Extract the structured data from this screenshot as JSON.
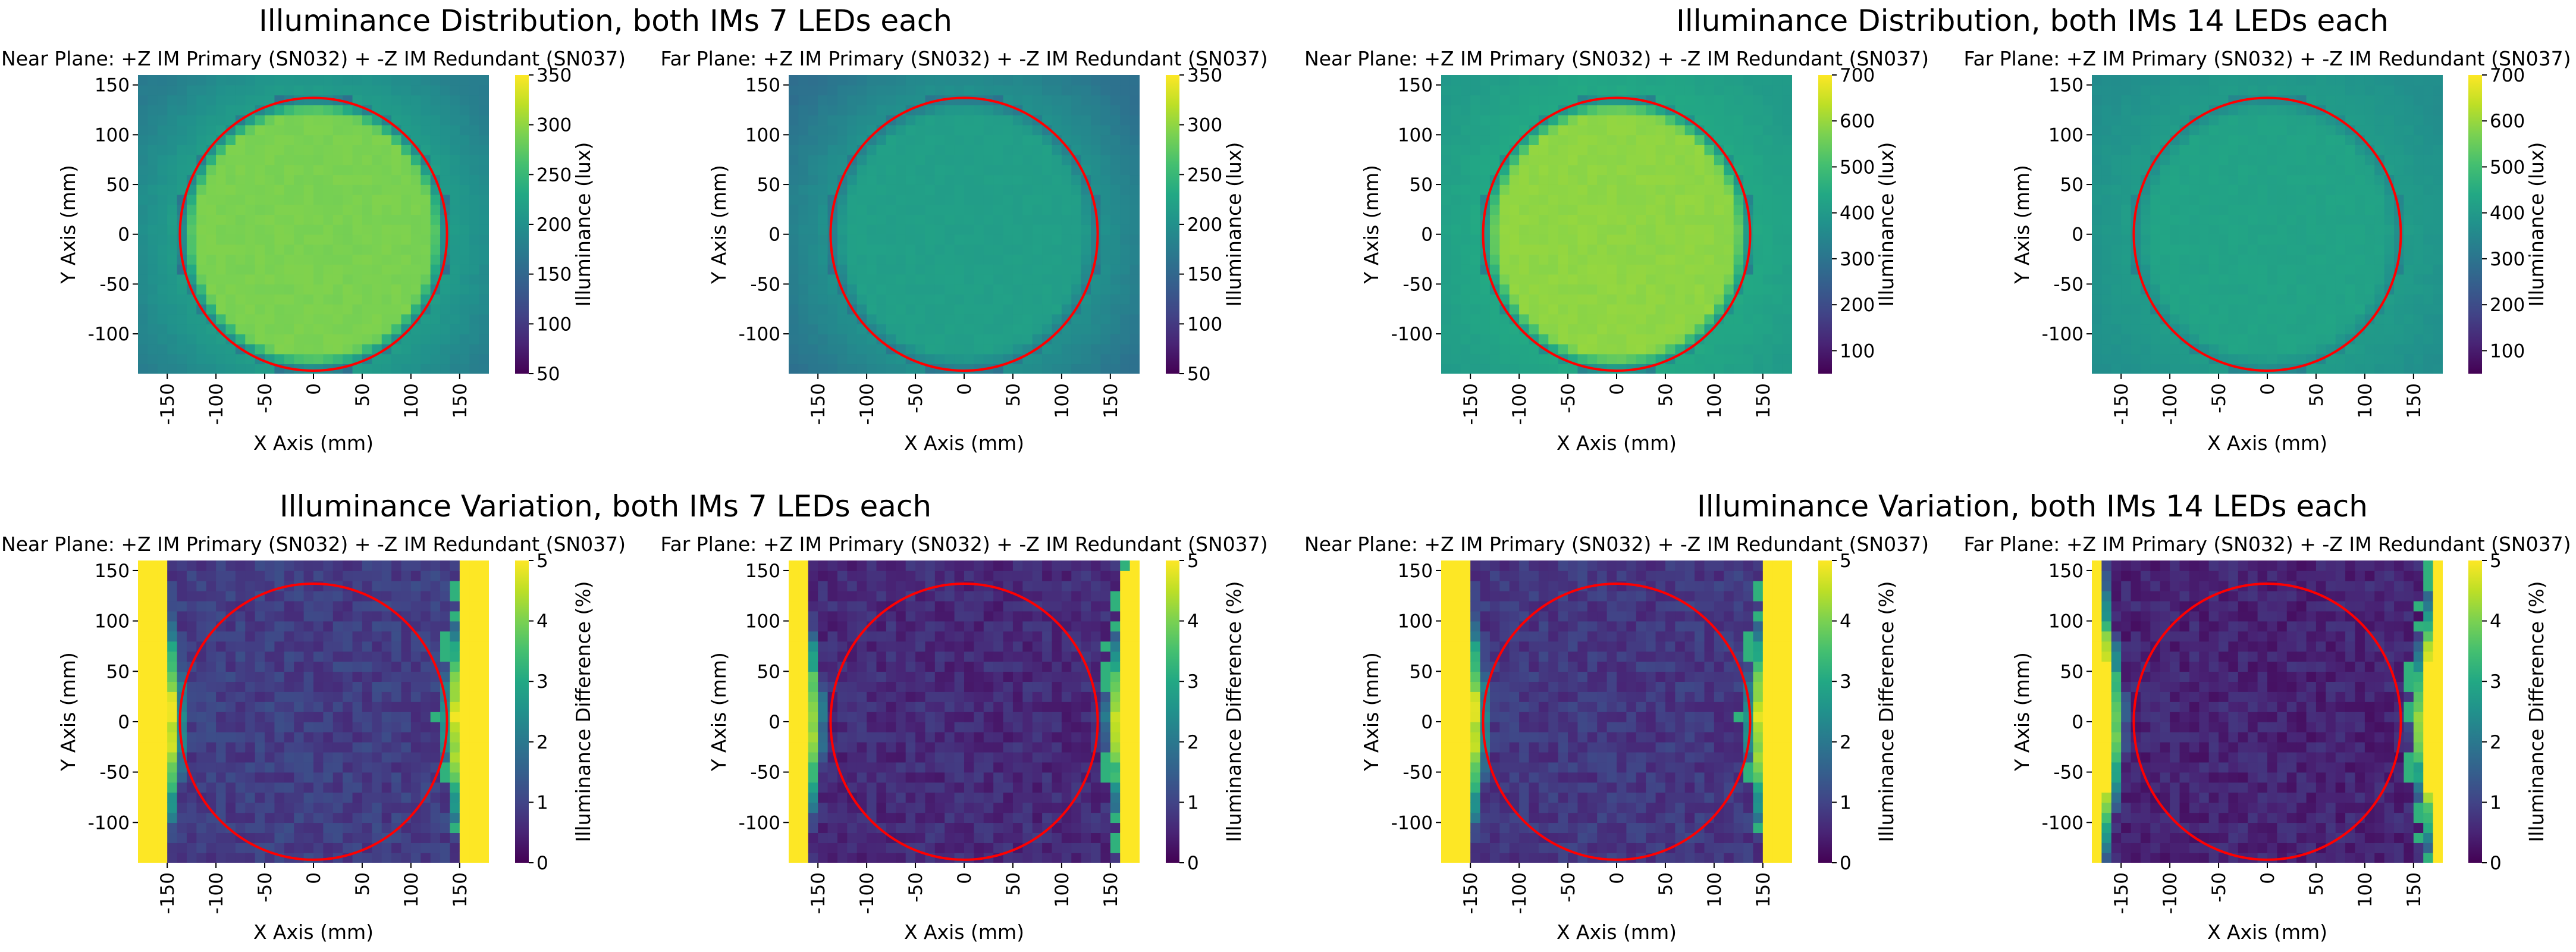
{
  "colors": {
    "circle": "#ff0000",
    "viridis": [
      "#440154",
      "#482475",
      "#414487",
      "#355f8d",
      "#2a788e",
      "#21918c",
      "#22a884",
      "#44bf70",
      "#7ad151",
      "#bddf26",
      "#fde725"
    ]
  },
  "suptitles": [
    "Illuminance Distribution, both IMs 7 LEDs each",
    "Illuminance Distribution, both IMs 14 LEDs each",
    "Illuminance Variation, both IMs 7 LEDs each",
    "Illuminance Variation, both IMs 14 LEDs each"
  ],
  "chart_data": [
    {
      "type": "heatmap",
      "id": "near-7-dist",
      "title": "Near Plane: +Z IM Primary (SN032) + -Z IM Redundant (SN037)",
      "xlabel": "X Axis (mm)",
      "ylabel": "Y Axis (mm)",
      "xticks": [
        "-150",
        "-100",
        "-50",
        "0",
        "50",
        "100",
        "150"
      ],
      "yticks": [
        "150",
        "100",
        "50",
        "0",
        "-50",
        "-100"
      ],
      "xlim": [
        -180,
        180
      ],
      "ylim": [
        -140,
        160
      ],
      "colorbar": {
        "label": "Illuminance (lux)",
        "ticks": [
          "350",
          "300",
          "250",
          "200",
          "150",
          "100",
          "50"
        ],
        "range": [
          50,
          350
        ]
      },
      "field": {
        "kind": "distribution",
        "inside": 290,
        "edge": 160,
        "outside": 215
      },
      "circle": {
        "cx": 0,
        "cy": 0,
        "r": 137
      }
    },
    {
      "type": "heatmap",
      "id": "far-7-dist",
      "title": "Far Plane: +Z IM Primary (SN032) + -Z IM Redundant (SN037)",
      "xlabel": "X Axis (mm)",
      "ylabel": "Y Axis (mm)",
      "xticks": [
        "-150",
        "-100",
        "-50",
        "0",
        "50",
        "100",
        "150"
      ],
      "yticks": [
        "150",
        "100",
        "50",
        "0",
        "-50",
        "-100"
      ],
      "xlim": [
        -180,
        180
      ],
      "ylim": [
        -140,
        160
      ],
      "colorbar": {
        "label": "Illuminance (lux)",
        "ticks": [
          "350",
          "300",
          "250",
          "200",
          "150",
          "100",
          "50"
        ],
        "range": [
          50,
          350
        ]
      },
      "field": {
        "kind": "distribution",
        "inside": 218,
        "edge": 165,
        "outside": 200
      },
      "circle": {
        "cx": 0,
        "cy": 0,
        "r": 137
      }
    },
    {
      "type": "heatmap",
      "id": "near-14-dist",
      "title": "Near Plane: +Z IM Primary (SN032) + -Z IM Redundant (SN037)",
      "xlabel": "X Axis (mm)",
      "ylabel": "Y Axis (mm)",
      "xticks": [
        "-150",
        "-100",
        "-50",
        "0",
        "50",
        "100",
        "150"
      ],
      "yticks": [
        "150",
        "100",
        "50",
        "0",
        "-50",
        "-100"
      ],
      "xlim": [
        -180,
        180
      ],
      "ylim": [
        -140,
        160
      ],
      "colorbar": {
        "label": "Illuminance (lux)",
        "ticks": [
          "700",
          "600",
          "500",
          "400",
          "300",
          "200",
          "100"
        ],
        "range": [
          50,
          700
        ]
      },
      "field": {
        "kind": "distribution",
        "inside": 590,
        "edge": 330,
        "outside": 440
      },
      "circle": {
        "cx": 0,
        "cy": 0,
        "r": 137
      }
    },
    {
      "type": "heatmap",
      "id": "far-14-dist",
      "title": "Far Plane: +Z IM Primary (SN032) + -Z IM Redundant (SN037)",
      "xlabel": "X Axis (mm)",
      "ylabel": "Y Axis (mm)",
      "xticks": [
        "-150",
        "-100",
        "-50",
        "0",
        "50",
        "100",
        "150"
      ],
      "yticks": [
        "150",
        "100",
        "50",
        "0",
        "-50",
        "-100"
      ],
      "xlim": [
        -180,
        180
      ],
      "ylim": [
        -140,
        160
      ],
      "colorbar": {
        "label": "Illuminance (lux)",
        "ticks": [
          "700",
          "600",
          "500",
          "400",
          "300",
          "200",
          "100"
        ],
        "range": [
          50,
          700
        ]
      },
      "field": {
        "kind": "distribution",
        "inside": 425,
        "edge": 340,
        "outside": 405
      },
      "circle": {
        "cx": 0,
        "cy": 0,
        "r": 137
      }
    },
    {
      "type": "heatmap",
      "id": "near-7-var",
      "title": "Near Plane: +Z IM Primary (SN032) + -Z IM Redundant (SN037)",
      "xlabel": "X Axis (mm)",
      "ylabel": "Y Axis (mm)",
      "xticks": [
        "-150",
        "-100",
        "-50",
        "0",
        "50",
        "100",
        "150"
      ],
      "yticks": [
        "150",
        "100",
        "50",
        "0",
        "-50",
        "-100"
      ],
      "xlim": [
        -180,
        180
      ],
      "ylim": [
        -140,
        160
      ],
      "colorbar": {
        "label": "Illuminance Difference (%)",
        "ticks": [
          "5",
          "4",
          "3",
          "2",
          "1",
          "0"
        ],
        "range": [
          0,
          5
        ]
      },
      "field": {
        "kind": "variation",
        "inside": 0.9,
        "edgeDist": 128,
        "bandWidth": 18,
        "outerEdge": 150
      },
      "circle": {
        "cx": 0,
        "cy": 0,
        "r": 137
      }
    },
    {
      "type": "heatmap",
      "id": "far-7-var",
      "title": "Far Plane: +Z IM Primary (SN032) + -Z IM Redundant (SN037)",
      "xlabel": "X Axis (mm)",
      "ylabel": "Y Axis (mm)",
      "xticks": [
        "-150",
        "-100",
        "-50",
        "0",
        "50",
        "100",
        "150"
      ],
      "yticks": [
        "150",
        "100",
        "50",
        "0",
        "-50",
        "-100"
      ],
      "xlim": [
        -180,
        180
      ],
      "ylim": [
        -140,
        160
      ],
      "colorbar": {
        "label": "Illuminance Difference (%)",
        "ticks": [
          "5",
          "4",
          "3",
          "2",
          "1",
          "0"
        ],
        "range": [
          0,
          5
        ]
      },
      "field": {
        "kind": "variation",
        "inside": 0.6,
        "edgeDist": 140,
        "bandWidth": 16,
        "outerEdge": 162
      },
      "circle": {
        "cx": 0,
        "cy": 0,
        "r": 137
      }
    },
    {
      "type": "heatmap",
      "id": "near-14-var",
      "title": "Near Plane: +Z IM Primary (SN032) + -Z IM Redundant (SN037)",
      "xlabel": "X Axis (mm)",
      "ylabel": "Y Axis (mm)",
      "xticks": [
        "-150",
        "-100",
        "-50",
        "0",
        "50",
        "100",
        "150"
      ],
      "yticks": [
        "150",
        "100",
        "50",
        "0",
        "-50",
        "-100"
      ],
      "xlim": [
        -180,
        180
      ],
      "ylim": [
        -140,
        160
      ],
      "colorbar": {
        "label": "Illuminance Difference (%)",
        "ticks": [
          "5",
          "4",
          "3",
          "2",
          "1",
          "0"
        ],
        "range": [
          0,
          5
        ]
      },
      "field": {
        "kind": "variation",
        "inside": 0.8,
        "edgeDist": 128,
        "bandWidth": 18,
        "outerEdge": 150
      },
      "circle": {
        "cx": 0,
        "cy": 0,
        "r": 137
      }
    },
    {
      "type": "heatmap",
      "id": "far-14-var",
      "title": "Far Plane: +Z IM Primary (SN032) + -Z IM Redundant (SN037)",
      "xlabel": "X Axis (mm)",
      "ylabel": "Y Axis (mm)",
      "xticks": [
        "-150",
        "-100",
        "-50",
        "0",
        "50",
        "100",
        "150"
      ],
      "yticks": [
        "150",
        "100",
        "50",
        "0",
        "-50",
        "-100"
      ],
      "xlim": [
        -180,
        180
      ],
      "ylim": [
        -140,
        160
      ],
      "colorbar": {
        "label": "Illuminance Difference (%)",
        "ticks": [
          "5",
          "4",
          "3",
          "2",
          "1",
          "0"
        ],
        "range": [
          0,
          5
        ]
      },
      "field": {
        "kind": "variation",
        "inside": 0.5,
        "edgeDist": 142,
        "bandWidth": 15,
        "outerEdge": 165
      },
      "circle": {
        "cx": 0,
        "cy": 0,
        "r": 137
      }
    }
  ]
}
